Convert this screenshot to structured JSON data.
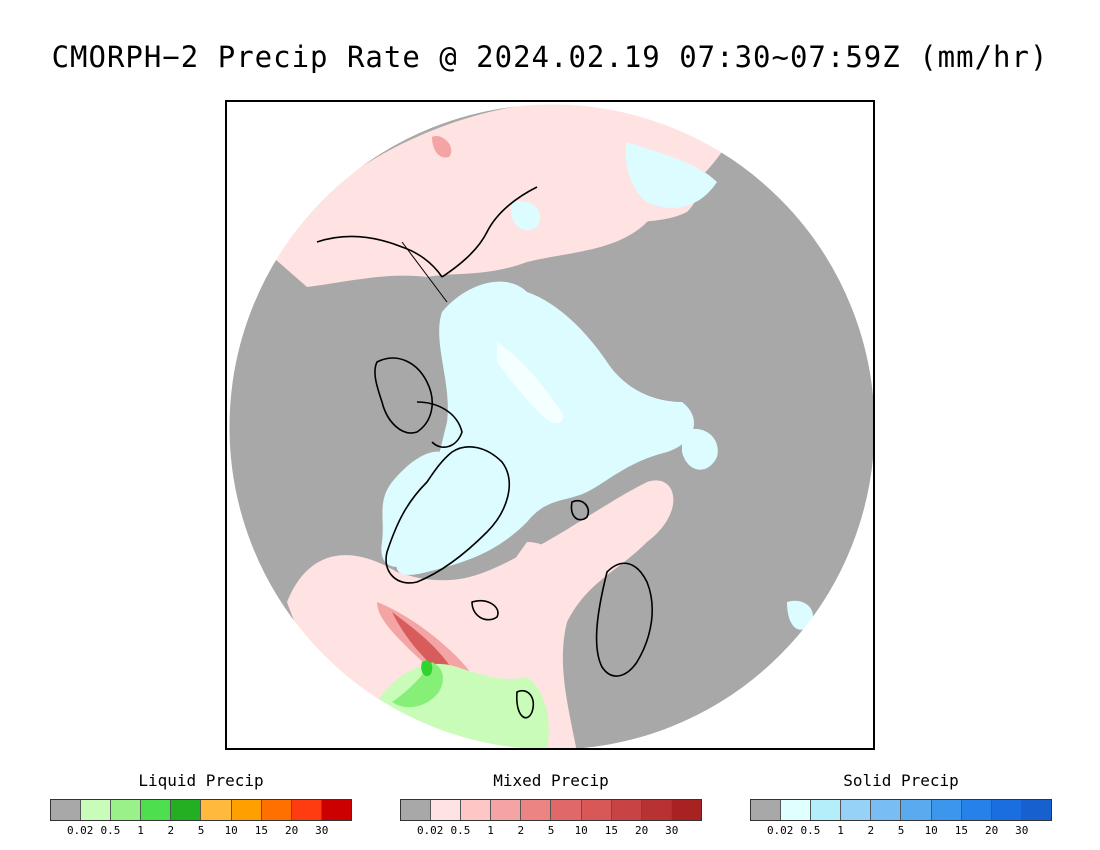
{
  "title": "CMORPH−2 Precip Rate @ 2024.02.19 07:30~07:59Z (mm/hr)",
  "map": {
    "projection": "north-polar-stereographic",
    "colors": {
      "no_precip": "#a8a8a8",
      "light_mixed": "#ffe2e2",
      "medium_mixed": "#f4a4a4",
      "heavy_mixed": "#d85c5c",
      "light_solid": "#dcfcff",
      "bright_solid": "#f4ffff",
      "light_liquid": "#c8fcb8",
      "medium_liquid": "#86ef78",
      "heavy_liquid": "#2fd42f",
      "coastline": "#000000"
    }
  },
  "legends": [
    {
      "title": "Liquid Precip",
      "colors": [
        "#a8a8a8",
        "#c8fcb8",
        "#9af089",
        "#4ddf4d",
        "#22b022",
        "#ffb93d",
        "#ffa000",
        "#ff7000",
        "#ff3c10",
        "#cc0000"
      ],
      "ticks": [
        "0.02",
        "0.5",
        "1",
        "2",
        "5",
        "10",
        "15",
        "20",
        "30"
      ]
    },
    {
      "title": "Mixed Precip",
      "colors": [
        "#a8a8a8",
        "#ffe2e2",
        "#ffc6c6",
        "#f4a4a4",
        "#ec8484",
        "#e06868",
        "#d85858",
        "#c84444",
        "#b83232",
        "#a82222"
      ],
      "ticks": [
        "0.02",
        "0.5",
        "1",
        "2",
        "5",
        "10",
        "15",
        "20",
        "30"
      ]
    },
    {
      "title": "Solid Precip",
      "colors": [
        "#a8a8a8",
        "#e0ffff",
        "#b4eefa",
        "#96d2f8",
        "#78bef4",
        "#5aaaf0",
        "#3c96ec",
        "#2682ea",
        "#1a6ee0",
        "#1660d0"
      ],
      "ticks": [
        "0.02",
        "0.5",
        "1",
        "2",
        "5",
        "10",
        "15",
        "20",
        "30"
      ]
    }
  ]
}
